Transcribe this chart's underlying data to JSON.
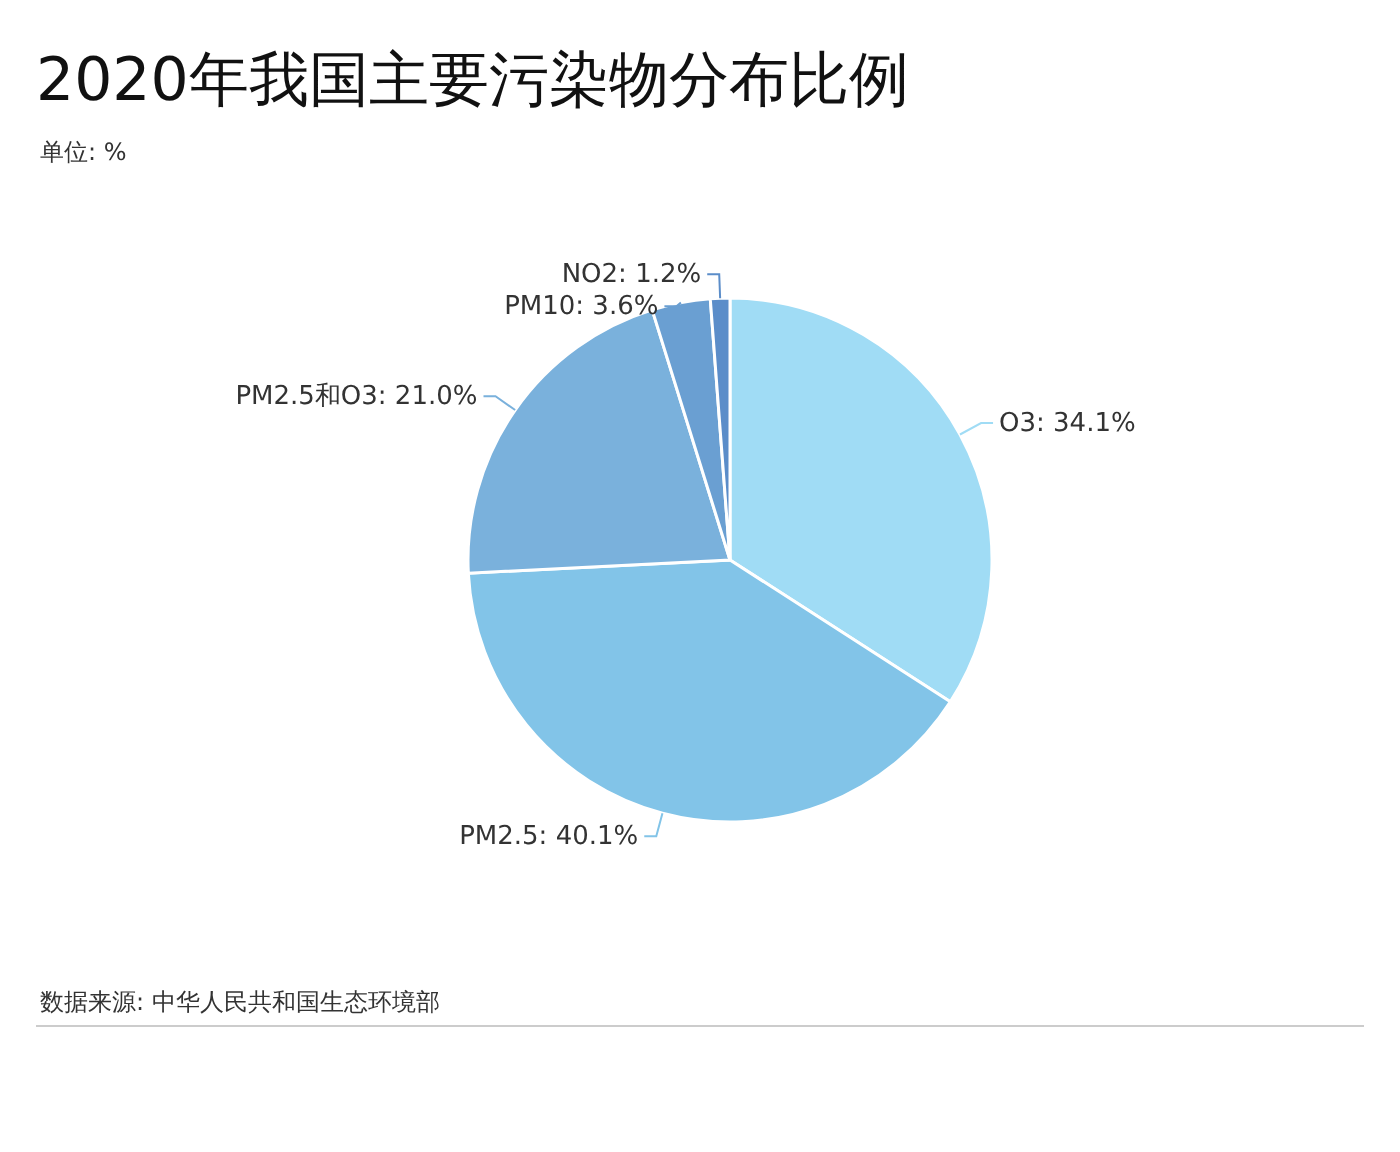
{
  "chart_data": {
    "type": "pie",
    "title": "2020年我国主要污染物分布比例",
    "subtitle": "单位: %",
    "categories": [
      "O3",
      "PM2.5",
      "PM2.5和O3",
      "PM10",
      "NO2"
    ],
    "values": [
      34.1,
      40.1,
      21.0,
      3.6,
      1.2
    ],
    "value_labels": [
      "34.1%",
      "40.1%",
      "21.0%",
      "3.6%",
      "1.2%"
    ],
    "colors": [
      "#a0dcf5",
      "#82c4e8",
      "#7ab1dc",
      "#6a9fd2",
      "#5b8dc9"
    ],
    "annotations": [
      "数据来源: 中华人民共和国生态环境部"
    ]
  }
}
